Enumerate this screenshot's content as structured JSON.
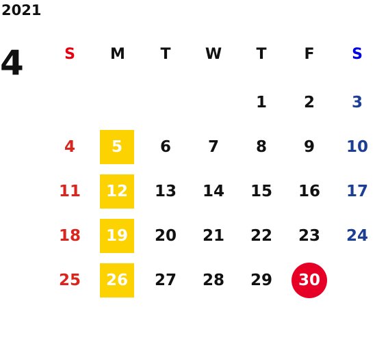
{
  "year": "2021",
  "month": "4",
  "weekdays": [
    "S",
    "M",
    "T",
    "W",
    "T",
    "F",
    "S"
  ],
  "weeks": [
    [
      null,
      null,
      null,
      null,
      "1",
      "2",
      "3"
    ],
    [
      "4",
      "5",
      "6",
      "7",
      "8",
      "9",
      "10"
    ],
    [
      "11",
      "12",
      "13",
      "14",
      "15",
      "16",
      "17"
    ],
    [
      "18",
      "19",
      "20",
      "21",
      "22",
      "23",
      "24"
    ],
    [
      "25",
      "26",
      "27",
      "28",
      "29",
      "30",
      null
    ]
  ]
}
